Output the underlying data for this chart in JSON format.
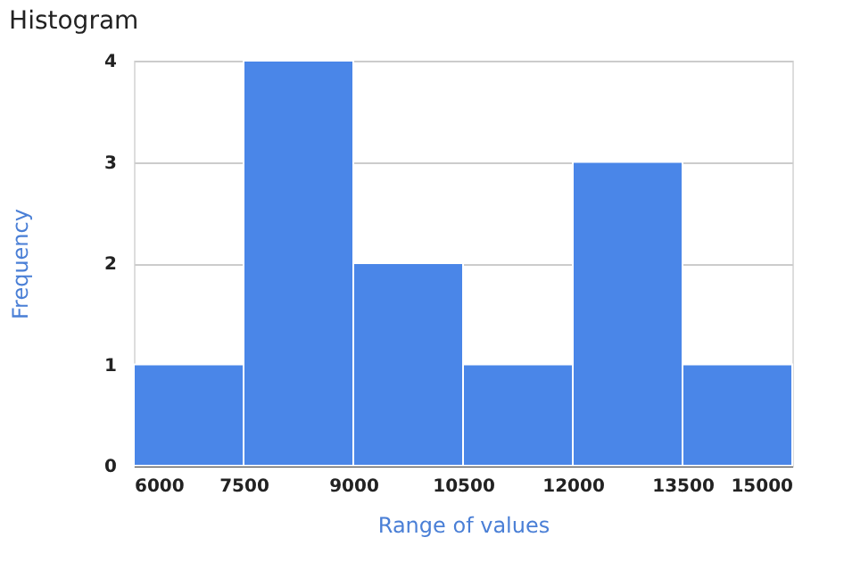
{
  "chart_data": {
    "type": "histogram",
    "title": "Histogram",
    "xlabel": "Range of values",
    "ylabel": "Frequency",
    "bins": [
      6000,
      7500,
      9000,
      10500,
      12000,
      13500,
      15000
    ],
    "values": [
      1,
      4,
      2,
      1,
      3,
      1
    ],
    "color": "#4a86e8",
    "xlim": [
      6000,
      15000
    ],
    "xticks": [
      6000,
      7500,
      9000,
      10500,
      12000,
      13500,
      15000
    ],
    "ylim": [
      0,
      4
    ],
    "yticks": [
      0,
      1,
      2,
      3,
      4
    ],
    "grid": "y",
    "legend": false
  }
}
